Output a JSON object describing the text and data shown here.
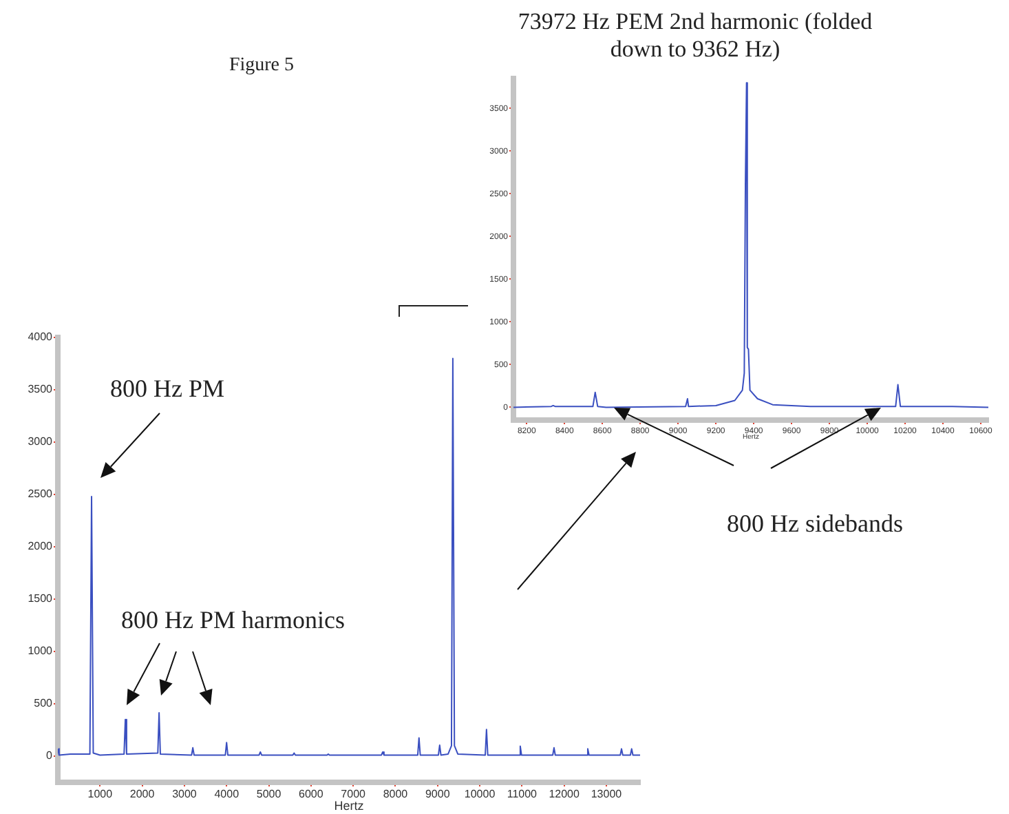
{
  "chart_data": [
    {
      "type": "line",
      "title": "Figure 5",
      "xlabel": "Hertz",
      "color": "#3a4fc0",
      "marker": "none",
      "grid": false,
      "legend": false,
      "x": [
        0,
        30,
        300,
        760,
        800,
        840,
        1000,
        1570,
        1600,
        1630,
        2370,
        2400,
        2430,
        3170,
        3200,
        3230,
        3970,
        4000,
        4030,
        4770,
        4800,
        4830,
        5570,
        5600,
        5630,
        6380,
        6410,
        6440,
        7670,
        7700,
        7730,
        8530,
        8560,
        8590,
        9020,
        9050,
        9080,
        9250,
        9330,
        9362,
        9400,
        9480,
        10130,
        10160,
        10190,
        10930,
        10960,
        10990,
        11730,
        11760,
        11790,
        12530,
        12560,
        12590,
        13330,
        13360,
        13390,
        13570,
        13600,
        13630,
        13800
      ],
      "values": [
        70,
        10,
        20,
        20,
        2480,
        30,
        10,
        20,
        350,
        20,
        30,
        415,
        20,
        10,
        80,
        10,
        10,
        130,
        10,
        10,
        40,
        10,
        10,
        30,
        10,
        10,
        20,
        10,
        10,
        40,
        10,
        10,
        175,
        10,
        10,
        105,
        10,
        20,
        100,
        3800,
        100,
        20,
        10,
        255,
        10,
        10,
        95,
        10,
        10,
        80,
        10,
        10,
        70,
        10,
        10,
        70,
        10,
        10,
        70,
        10,
        10
      ],
      "xlim": [
        0,
        13800
      ],
      "xticks": [
        1000,
        2000,
        3000,
        4000,
        5000,
        6000,
        7000,
        8000,
        9000,
        10000,
        11000,
        12000,
        13000
      ],
      "ylim": [
        -250,
        4000
      ],
      "yticks": [
        0,
        500,
        1000,
        1500,
        2000,
        2500,
        3000,
        3500,
        4000
      ],
      "annotations": [
        "800 Hz PM",
        "800 Hz PM harmonics",
        "800 Hz sidebands"
      ]
    },
    {
      "type": "line",
      "title": "73972 Hz PEM 2nd harmonic (folded down to 9362 Hz)",
      "xlabel": "Hertz",
      "color": "#3a4fc0",
      "marker": "none",
      "grid": false,
      "legend": false,
      "x": [
        8130,
        8330,
        8340,
        8350,
        8550,
        8562,
        8575,
        8620,
        9040,
        9050,
        9055,
        9200,
        9300,
        9340,
        9350,
        9356,
        9362,
        9366,
        9372,
        9380,
        9420,
        9500,
        9700,
        9950,
        10150,
        10162,
        10175,
        10450,
        10640
      ],
      "values": [
        0,
        10,
        20,
        10,
        10,
        175,
        10,
        0,
        10,
        100,
        10,
        20,
        80,
        200,
        400,
        2620,
        3800,
        700,
        680,
        200,
        100,
        30,
        10,
        10,
        10,
        265,
        10,
        10,
        0
      ],
      "xlim": [
        8130,
        10640
      ],
      "xticks": [
        8200,
        8400,
        8600,
        8800,
        9000,
        9200,
        9400,
        9600,
        9800,
        10000,
        10200,
        10400,
        10600
      ],
      "ylim": [
        -150,
        3850
      ],
      "yticks": [
        0,
        500,
        1000,
        1500,
        2000,
        2500,
        3000,
        3500
      ]
    }
  ]
}
